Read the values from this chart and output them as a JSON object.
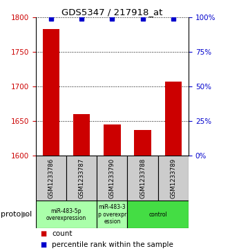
{
  "title": "GDS5347 / 217918_at",
  "samples": [
    "GSM1233786",
    "GSM1233787",
    "GSM1233790",
    "GSM1233788",
    "GSM1233789"
  ],
  "counts": [
    1783,
    1660,
    1645,
    1637,
    1707
  ],
  "percentiles": [
    100,
    100,
    100,
    100,
    100
  ],
  "ylim_left": [
    1600,
    1800
  ],
  "ylim_right": [
    0,
    100
  ],
  "yticks_left": [
    1600,
    1650,
    1700,
    1750,
    1800
  ],
  "yticks_right": [
    0,
    25,
    50,
    75,
    100
  ],
  "bar_color": "#cc0000",
  "percentile_color": "#0000cc",
  "protocol_groups": [
    {
      "label": "miR-483-5p\noverexpression",
      "samples": [
        "GSM1233786",
        "GSM1233787"
      ],
      "color": "#aaffaa"
    },
    {
      "label": "miR-483-3\np overexpr\nession",
      "samples": [
        "GSM1233790"
      ],
      "color": "#aaffaa"
    },
    {
      "label": "control",
      "samples": [
        "GSM1233788",
        "GSM1233789"
      ],
      "color": "#44dd44"
    }
  ],
  "protocol_label": "protocol",
  "legend_count_label": "count",
  "legend_percentile_label": "percentile rank within the sample",
  "bar_width": 0.55,
  "dotted_grid_color": "#000000",
  "sample_box_color": "#cccccc"
}
